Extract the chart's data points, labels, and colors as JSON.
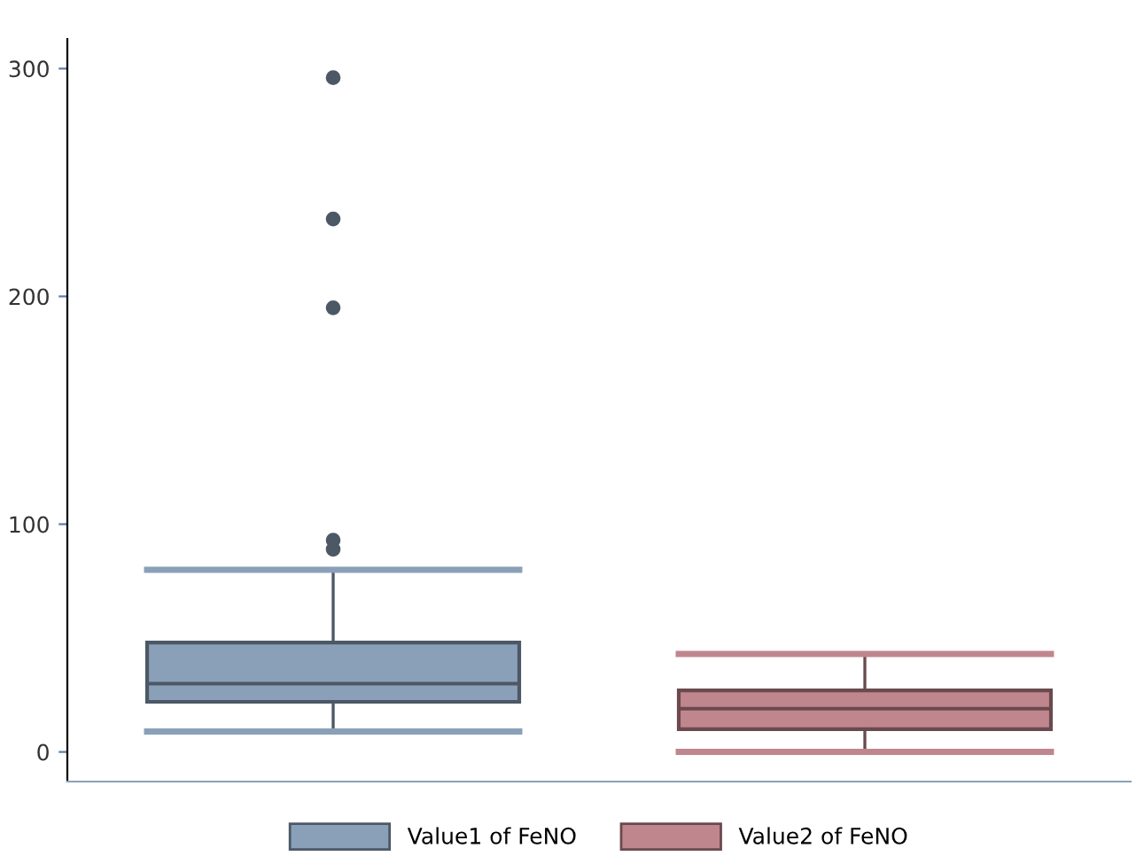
{
  "chart_data": {
    "type": "box",
    "categories": [
      null,
      null
    ],
    "ylim": [
      -13,
      313
    ],
    "yticks": [
      0,
      100,
      200,
      300
    ],
    "grid": false,
    "legend": "bottom",
    "series": [
      {
        "name": "Value1 of FeNO",
        "color": "#8aa0b8",
        "boxes": [
          {
            "low": 9,
            "q1": 22,
            "median": 30,
            "q3": 48,
            "high": 80,
            "outliers": [
              89,
              93,
              195,
              234,
              296
            ]
          },
          null
        ]
      },
      {
        "name": "Value2 of FeNO",
        "color": "#c0868e",
        "boxes": [
          null,
          {
            "low": 0,
            "q1": 10,
            "median": 19,
            "q3": 27,
            "high": 43
          }
        ]
      }
    ]
  }
}
